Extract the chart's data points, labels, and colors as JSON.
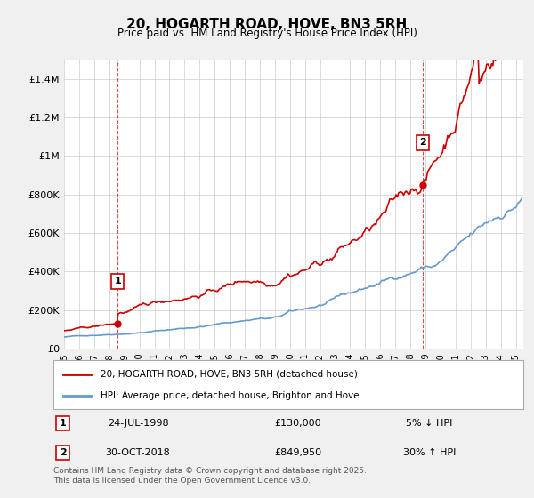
{
  "title": "20, HOGARTH ROAD, HOVE, BN3 5RH",
  "subtitle": "Price paid vs. HM Land Registry's House Price Index (HPI)",
  "ylabel_ticks": [
    "£0",
    "£200K",
    "£400K",
    "£600K",
    "£800K",
    "£1M",
    "£1.2M",
    "£1.4M"
  ],
  "ytick_vals": [
    0,
    200000,
    400000,
    600000,
    800000,
    1000000,
    1200000,
    1400000
  ],
  "ylim": [
    0,
    1500000
  ],
  "xlim_start": 1995.0,
  "xlim_end": 2025.5,
  "xticks": [
    1995,
    1996,
    1997,
    1998,
    1999,
    2000,
    2001,
    2002,
    2003,
    2004,
    2005,
    2006,
    2007,
    2008,
    2009,
    2010,
    2011,
    2012,
    2013,
    2014,
    2015,
    2016,
    2017,
    2018,
    2019,
    2020,
    2021,
    2022,
    2023,
    2024,
    2025
  ],
  "sale1_x": 1998.56,
  "sale1_y": 130000,
  "sale1_label": "1",
  "sale1_date": "24-JUL-1998",
  "sale1_price": "£130,000",
  "sale1_hpi": "5% ↓ HPI",
  "sale1_label_yoffset": 220000,
  "sale2_x": 2018.83,
  "sale2_y": 849950,
  "sale2_label": "2",
  "sale2_date": "30-OCT-2018",
  "sale2_price": "£849,950",
  "sale2_hpi": "30% ↑ HPI",
  "sale2_label_yoffset": 220000,
  "line_color_property": "#cc0000",
  "line_color_hpi": "#6699cc",
  "legend_label_property": "20, HOGARTH ROAD, HOVE, BN3 5RH (detached house)",
  "legend_label_hpi": "HPI: Average price, detached house, Brighton and Hove",
  "footnote": "Contains HM Land Registry data © Crown copyright and database right 2025.\nThis data is licensed under the Open Government Licence v3.0.",
  "background_color": "#f0f0f0",
  "plot_bg_color": "#ffffff",
  "grid_color": "#cccccc"
}
